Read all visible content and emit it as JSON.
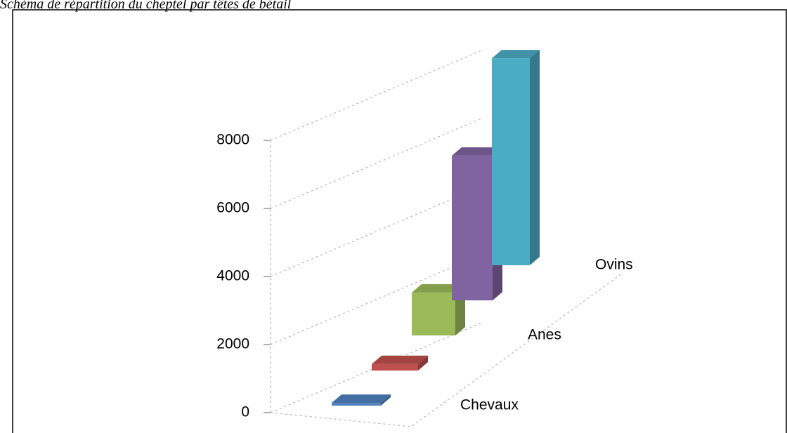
{
  "chart_data": {
    "type": "bar3d",
    "title": "Schéma de répartition du cheptel par têtes de bétail",
    "categories": [
      "Chevaux",
      null,
      "Anes",
      null,
      "Ovins"
    ],
    "values": [
      80,
      200,
      1400,
      5000,
      7600
    ],
    "colors": [
      "#4f81bd",
      "#c0504d",
      "#9bbb59",
      "#8064a2",
      "#4bacc6"
    ],
    "ylim": [
      0,
      8000
    ],
    "yticks": [
      0,
      2000,
      4000,
      6000,
      8000
    ],
    "grid": true
  }
}
